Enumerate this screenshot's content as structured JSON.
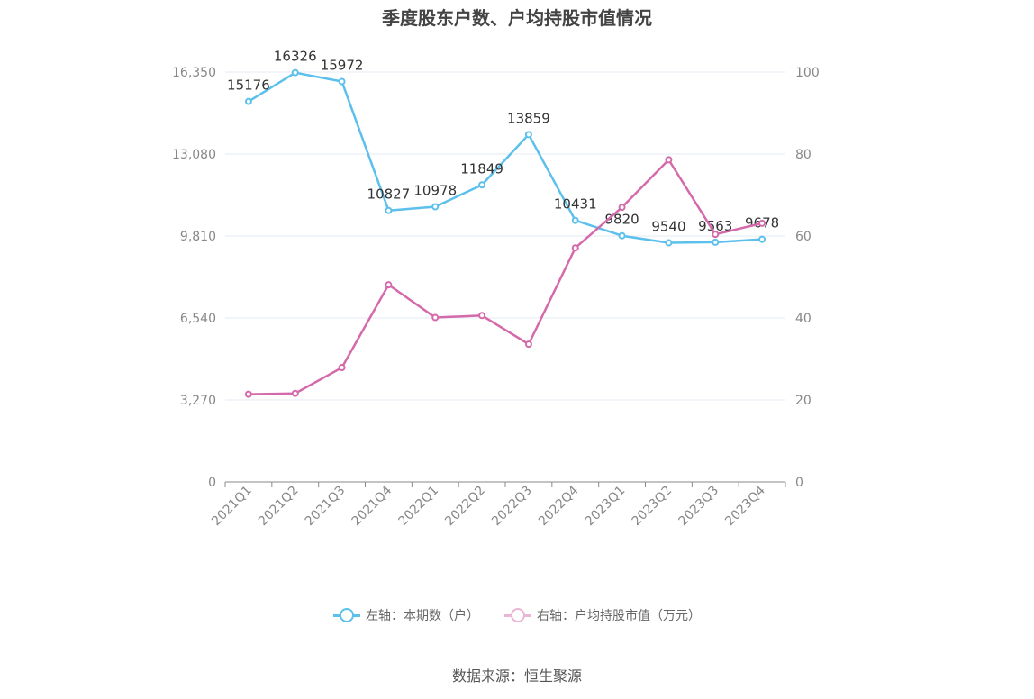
{
  "title": "季度股东户数、户均持股市值情况",
  "source": "数据来源：恒生聚源",
  "legend": [
    {
      "label": "左轴：本期数（户）",
      "color": "#5bc0eb"
    },
    {
      "label": "右轴：户均持股市值（万元）",
      "color": "#d56aab"
    }
  ],
  "chart_data": {
    "type": "line",
    "title": "季度股东户数、户均持股市值情况",
    "categories": [
      "2021Q1",
      "2021Q2",
      "2021Q3",
      "2021Q4",
      "2022Q1",
      "2022Q2",
      "2022Q3",
      "2022Q4",
      "2023Q1",
      "2023Q2",
      "2023Q3",
      "2023Q4"
    ],
    "left_axis": {
      "ylim": [
        0,
        16350
      ],
      "ticks": [
        0,
        3270,
        6540,
        9810,
        13080,
        16350
      ],
      "tick_labels": [
        "0",
        "3,270",
        "6,540",
        "9,810",
        "13,080",
        "16,350"
      ]
    },
    "right_axis": {
      "ylim": [
        0,
        100
      ],
      "ticks": [
        0,
        20,
        40,
        60,
        80,
        100
      ],
      "tick_labels": [
        "0",
        "20",
        "40",
        "60",
        "80",
        "100"
      ]
    },
    "grid": true,
    "legend_position": "bottom",
    "series": [
      {
        "name": "左轴：本期数（户）",
        "axis": "left",
        "color": "#5bc0eb",
        "show_labels": true,
        "values": [
          15176,
          16326,
          15972,
          10827,
          10978,
          11849,
          13859,
          10431,
          9820,
          9540,
          9563,
          9678
        ]
      },
      {
        "name": "右轴：户均持股市值（万元）",
        "axis": "right",
        "color": "#d56aab",
        "show_labels": false,
        "values": [
          21.4,
          21.6,
          27.9,
          48.1,
          40.1,
          40.6,
          33.6,
          57.1,
          67.0,
          78.6,
          60.4,
          63.1
        ]
      }
    ]
  }
}
